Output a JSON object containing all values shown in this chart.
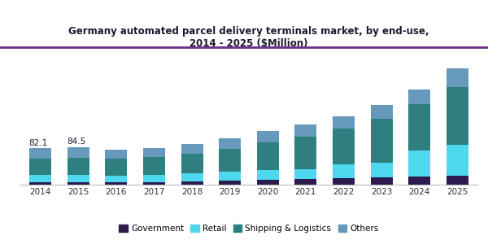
{
  "years": [
    2014,
    2015,
    2016,
    2017,
    2018,
    2019,
    2020,
    2021,
    2022,
    2023,
    2024,
    2025
  ],
  "government": [
    5.0,
    6.0,
    5.5,
    6.0,
    7.5,
    8.5,
    11.0,
    13.0,
    15.0,
    17.0,
    18.0,
    20.0
  ],
  "retail": [
    18.0,
    17.0,
    15.0,
    15.5,
    18.0,
    21.0,
    22.0,
    22.0,
    30.0,
    33.0,
    58.0,
    70.0
  ],
  "shipping": [
    35.0,
    37.0,
    38.0,
    40.0,
    44.0,
    50.0,
    62.0,
    72.0,
    80.0,
    98.0,
    105.0,
    128.0
  ],
  "others": [
    24.1,
    24.5,
    20.0,
    20.0,
    21.5,
    24.5,
    25.0,
    28.0,
    28.0,
    30.0,
    32.0,
    42.0
  ],
  "label_2014": "82.1",
  "label_2015": "84.5",
  "colors": {
    "government": "#2d1b4e",
    "retail": "#4dd8f0",
    "shipping": "#2e7f7f",
    "others": "#6699bb"
  },
  "title": "Germany automated parcel delivery terminals market, by end-use,\n2014 - 2025 ($Million)",
  "legend_labels": [
    "Government",
    "Retail",
    "Shipping & Logistics",
    "Others"
  ],
  "title_color": "#1a1a2e",
  "bg_color": "#ffffff",
  "title_line_color": "#6b2d8b"
}
